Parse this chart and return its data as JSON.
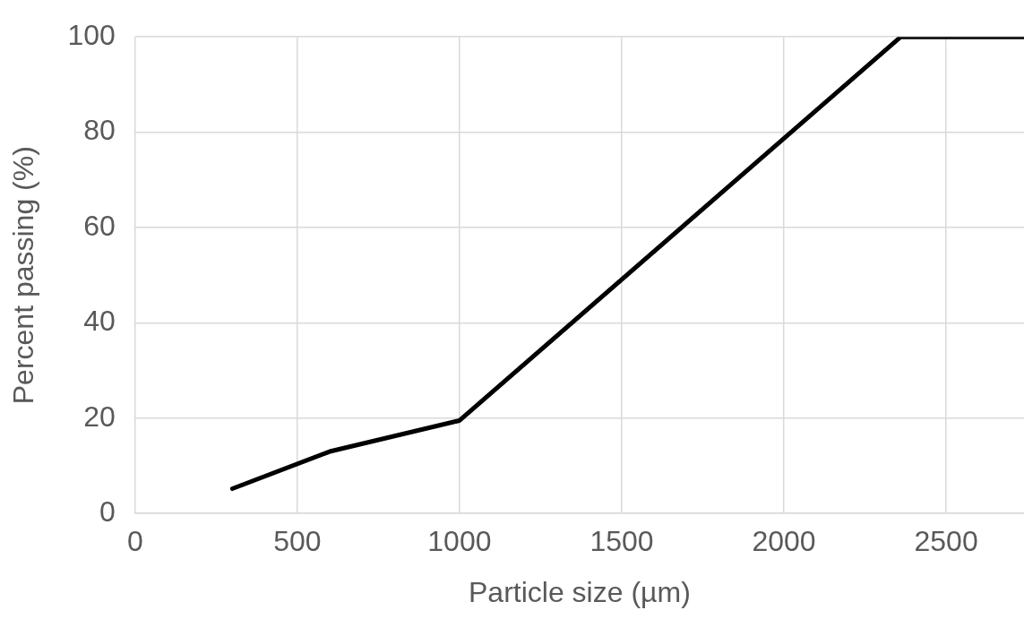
{
  "chart_data": {
    "type": "line",
    "xlabel": "Particle size (µm)",
    "ylabel": "Percent passing (%)",
    "x": [
      300,
      600,
      1000,
      2360,
      2740
    ],
    "series": [
      {
        "color": "#000000",
        "values": [
          5.2,
          13,
          19.5,
          100,
          100
        ]
      }
    ],
    "xlim": [
      0,
      2740
    ],
    "xticks": [
      0,
      500,
      1000,
      1500,
      2000,
      2500
    ],
    "ylim": [
      0,
      100
    ],
    "yticks": [
      0,
      20,
      40,
      60,
      80,
      100
    ],
    "grid": true,
    "legend": false,
    "marker": "none",
    "line_style": "solid"
  }
}
